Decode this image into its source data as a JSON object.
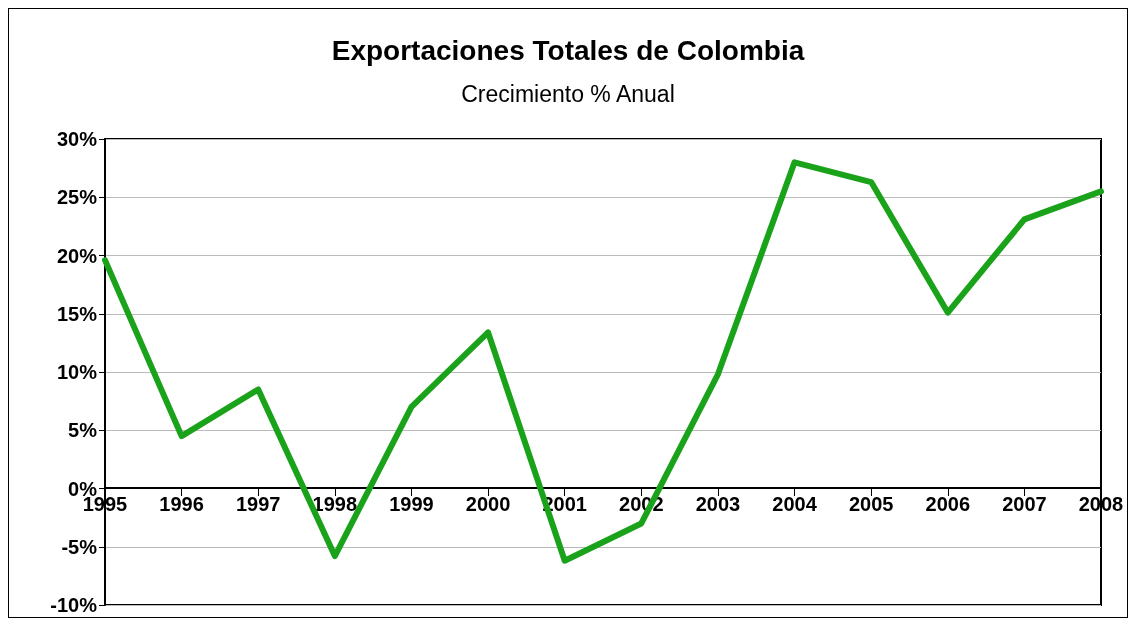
{
  "chart_data": {
    "type": "line",
    "title": "Exportaciones Totales de Colombia",
    "subtitle": "Crecimiento % Anual",
    "categories": [
      "1995",
      "1996",
      "1997",
      "1998",
      "1999",
      "2000",
      "2001",
      "2002",
      "2003",
      "2004",
      "2005",
      "2006",
      "2007",
      "2008"
    ],
    "series": [
      {
        "color": "#1aa31a",
        "values": [
          19.6,
          4.5,
          8.5,
          -5.8,
          7.0,
          13.4,
          -6.2,
          -3.0,
          9.8,
          28.0,
          26.3,
          15.1,
          23.1,
          25.5
        ]
      }
    ],
    "ylim": [
      -10,
      30
    ],
    "yticks": [
      {
        "value": -10,
        "label": "-10%"
      },
      {
        "value": -5,
        "label": "-5%"
      },
      {
        "value": 0,
        "label": "0%"
      },
      {
        "value": 5,
        "label": "5%"
      },
      {
        "value": 10,
        "label": "10%"
      },
      {
        "value": 15,
        "label": "15%"
      },
      {
        "value": 20,
        "label": "20%"
      },
      {
        "value": 25,
        "label": "25%"
      },
      {
        "value": 30,
        "label": "30%"
      }
    ],
    "grid": "y",
    "marker": "none",
    "line_style": "solid"
  }
}
